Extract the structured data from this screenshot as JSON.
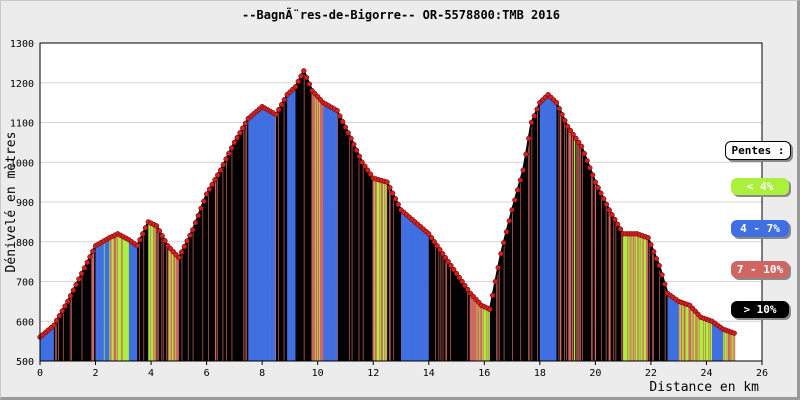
{
  "chart_data": {
    "type": "area",
    "title": "--BagnÃ¨res-de-Bigorre-- OR-5578800:TMB 2016",
    "xlabel": "Distance en km",
    "ylabel": "Dénivelé en mètres",
    "xlim": [
      0,
      26
    ],
    "ylim": [
      500,
      1300
    ],
    "xticks": [
      "0",
      "2",
      "4",
      "6",
      "8",
      "10",
      "12",
      "14",
      "16",
      "18",
      "20",
      "22",
      "24",
      "26"
    ],
    "yticks": [
      "500",
      "600",
      "700",
      "800",
      "900",
      "1000",
      "1100",
      "1200",
      "1300"
    ],
    "grid": true,
    "legend_position": "right",
    "legend": {
      "title": "Pentes :",
      "items": [
        {
          "label": "< 4%",
          "color": "#aaf03c",
          "text_color": "#ffffff"
        },
        {
          "label": "4 - 7%",
          "color": "#3f6fe0",
          "text_color": "#ffffff"
        },
        {
          "label": "7 - 10%",
          "color": "#cf6661",
          "text_color": "#ffffff"
        },
        {
          "label": "> 10%",
          "color": "#000000",
          "text_color": "#ffffff"
        }
      ]
    },
    "profile": {
      "x": [
        0,
        0.5,
        1.0,
        1.5,
        2.0,
        2.5,
        2.8,
        3.2,
        3.5,
        3.9,
        4.2,
        4.6,
        5.0,
        5.5,
        6.0,
        6.5,
        7.0,
        7.5,
        8.0,
        8.5,
        8.9,
        9.2,
        9.5,
        9.8,
        10.2,
        10.7,
        11.2,
        11.6,
        12.0,
        12.5,
        13.0,
        13.5,
        14.0,
        14.5,
        15.0,
        15.5,
        15.9,
        16.2,
        16.6,
        17.0,
        17.4,
        17.7,
        18.0,
        18.3,
        18.6,
        19.0,
        19.5,
        20.0,
        20.5,
        21.0,
        21.5,
        21.9,
        22.3,
        22.6,
        23.0,
        23.4,
        23.8,
        24.2,
        24.6,
        25.0
      ],
      "y": [
        560,
        590,
        650,
        720,
        790,
        810,
        820,
        805,
        790,
        850,
        840,
        790,
        760,
        830,
        920,
        980,
        1050,
        1110,
        1140,
        1120,
        1170,
        1190,
        1230,
        1180,
        1150,
        1130,
        1060,
        1000,
        960,
        950,
        880,
        850,
        820,
        770,
        720,
        670,
        640,
        630,
        770,
        880,
        980,
        1100,
        1150,
        1170,
        1150,
        1090,
        1040,
        950,
        880,
        820,
        820,
        810,
        740,
        670,
        650,
        640,
        610,
        600,
        580,
        570
      ]
    }
  }
}
